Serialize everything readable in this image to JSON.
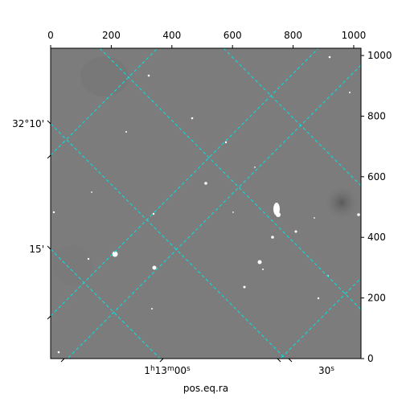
{
  "chart_data": {
    "type": "image",
    "xlabel": "pos.eq.ra",
    "pixel_axes": {
      "x_range": [
        0,
        1024
      ],
      "y_range": [
        0,
        1024
      ],
      "x_ticks": [
        0,
        200,
        400,
        600,
        800,
        1000
      ],
      "y_ticks": [
        0,
        200,
        400,
        600,
        800,
        1000
      ]
    },
    "world_axes": {
      "ra_ticks": [
        {
          "label_prefix": "1",
          "sup1": "h",
          "mid": "13",
          "sup2": "m",
          "suffix": "00",
          "sup3": "s"
        },
        {
          "label_prefix": "30",
          "sup1": "s"
        }
      ],
      "dec_ticks": [
        "32°10'",
        "15'"
      ]
    },
    "grid": true,
    "grid_color": "#00e5e5",
    "image_colormap": "gray"
  }
}
